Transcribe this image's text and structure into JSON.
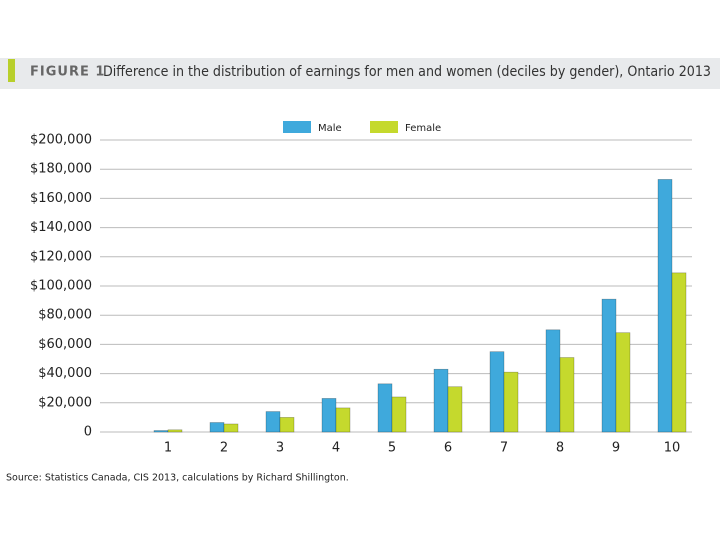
{
  "chart_data": {
    "type": "bar",
    "figure_label": "FIGURE 1",
    "title": "Difference in the distribution of earnings for men and women (deciles by gender), Ontario 2013",
    "source": "Source: Statistics Canada, CIS 2013, calculations by Richard Shillington.",
    "categories": [
      "1",
      "2",
      "3",
      "4",
      "5",
      "6",
      "7",
      "8",
      "9",
      "10"
    ],
    "series": [
      {
        "name": "Male",
        "color": "#3fa9dc",
        "values": [
          1000,
          6500,
          14000,
          23000,
          33000,
          43000,
          55000,
          70000,
          91000,
          173000
        ]
      },
      {
        "name": "Female",
        "color": "#c5d92d",
        "values": [
          1500,
          5500,
          10000,
          16500,
          24000,
          31000,
          41000,
          51000,
          68000,
          109000
        ]
      }
    ],
    "ylim": [
      0,
      200000
    ],
    "yticks": [
      0,
      {
        "value": 20000,
        "label": "$20,000"
      },
      {
        "value": 40000,
        "label": "$40,000"
      },
      {
        "value": 60000,
        "label": "$60,000"
      },
      {
        "value": 80000,
        "label": "$80,000"
      },
      {
        "value": 100000,
        "label": "$100,000"
      },
      {
        "value": 120000,
        "label": "$120,000"
      },
      {
        "value": 140000,
        "label": "$140,000"
      },
      {
        "value": 160000,
        "label": "$160,000"
      },
      {
        "value": 180000,
        "label": "$180,000"
      },
      {
        "value": 200000,
        "label": "$200,000"
      }
    ],
    "grid": true,
    "legend": "top"
  }
}
